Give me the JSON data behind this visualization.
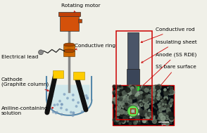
{
  "background_color": "#f0f0e8",
  "labels": {
    "rotating_motor": "Rotating motor",
    "conductive_ring": "Conductive ring",
    "electrical_lead": "Electrical lead",
    "cathode": "Cathode\n(Graphite column)",
    "aniline": "Aniline-containing\nsolution",
    "conductive_rod": "Conductive rod",
    "insulating_sheet": "Insulating sheet",
    "anode": "Anode (SS RDE)",
    "ss_bare": "SS bare surface"
  },
  "colors": {
    "motor_body": "#d4510a",
    "motor_top": "#c04008",
    "rod_color": "#888888",
    "ring_color": "#cc6600",
    "graphite": "#111111",
    "solution": "#aaddee",
    "arrow_color": "#cc0000",
    "box_color": "#cc0000",
    "green_part": "#33cc33",
    "sem_bg": "#050a10",
    "text_color": "#000000",
    "rod_dark": "#445566",
    "yellow_holder": "#ffcc00"
  }
}
